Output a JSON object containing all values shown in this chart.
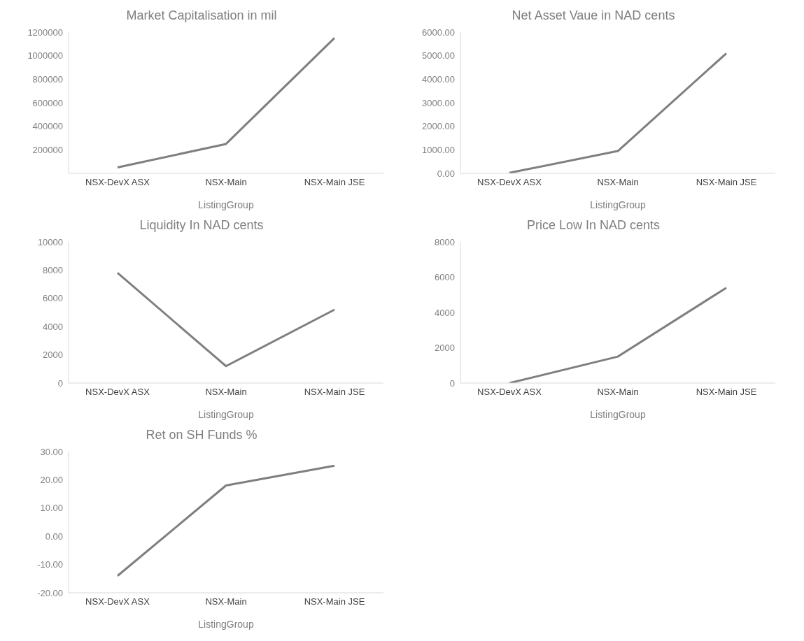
{
  "chart_data": [
    {
      "type": "line",
      "title": "Market Capitalisation in mil",
      "xlabel": "ListingGroup",
      "categories": [
        "NSX-DevX ASX",
        "NSX-Main",
        "NSX-Main JSE"
      ],
      "series": [
        {
          "color": "#7f7f7f",
          "values": [
            50000,
            250000,
            1150000
          ]
        }
      ],
      "ylim": [
        0,
        1200000
      ],
      "yticks": [
        200000,
        400000,
        600000,
        800000,
        1000000,
        1200000
      ]
    },
    {
      "type": "line",
      "title": "Net Asset Vaue in NAD cents",
      "xlabel": "ListingGroup",
      "categories": [
        "NSX-DevX ASX",
        "NSX-Main",
        "NSX-Main JSE"
      ],
      "series": [
        {
          "color": "#7f7f7f",
          "values": [
            20,
            950,
            5100
          ]
        }
      ],
      "ylim": [
        0,
        6000
      ],
      "yticks": [
        {
          "value": 0,
          "label": "0.00"
        },
        {
          "value": 1000,
          "label": "1000.00"
        },
        {
          "value": 2000,
          "label": "2000.00"
        },
        {
          "value": 3000,
          "label": "3000.00"
        },
        {
          "value": 4000,
          "label": "4000.00"
        },
        {
          "value": 5000,
          "label": "5000.00"
        },
        {
          "value": 6000,
          "label": "6000.00"
        }
      ]
    },
    {
      "type": "line",
      "title": "Liquidity In NAD cents",
      "xlabel": "ListingGroup",
      "categories": [
        "NSX-DevX ASX",
        "NSX-Main",
        "NSX-Main JSE"
      ],
      "series": [
        {
          "color": "#7f7f7f",
          "values": [
            7800,
            1200,
            5200
          ]
        }
      ],
      "ylim": [
        0,
        10000
      ],
      "yticks": [
        0,
        2000,
        4000,
        6000,
        8000,
        10000
      ]
    },
    {
      "type": "line",
      "title": "Price Low In NAD cents",
      "xlabel": "ListingGroup",
      "categories": [
        "NSX-DevX ASX",
        "NSX-Main",
        "NSX-Main JSE"
      ],
      "series": [
        {
          "color": "#7f7f7f",
          "values": [
            0,
            1500,
            5400
          ]
        }
      ],
      "ylim": [
        0,
        8000
      ],
      "yticks": [
        0,
        2000,
        4000,
        6000,
        8000
      ]
    },
    {
      "type": "line",
      "title": "Ret on SH Funds %",
      "xlabel": "ListingGroup",
      "categories": [
        "NSX-DevX ASX",
        "NSX-Main",
        "NSX-Main JSE"
      ],
      "series": [
        {
          "color": "#7f7f7f",
          "values": [
            -14,
            18,
            25
          ]
        }
      ],
      "ylim": [
        -20,
        30
      ],
      "yticks": [
        {
          "value": -20,
          "label": "-20.00"
        },
        {
          "value": -10,
          "label": "-10.00"
        },
        {
          "value": 0,
          "label": "0.00"
        },
        {
          "value": 10,
          "label": "10.00"
        },
        {
          "value": 20,
          "label": "20.00"
        },
        {
          "value": 30,
          "label": "30.00"
        }
      ]
    }
  ]
}
